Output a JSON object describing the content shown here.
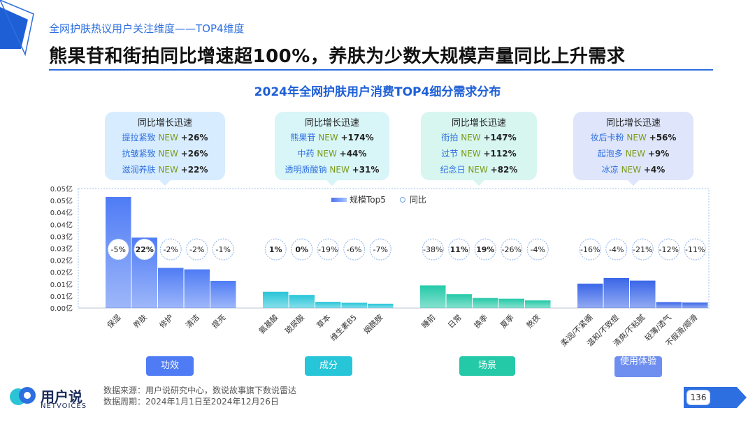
{
  "header": {
    "subtitle": "全网护肤热议用户关注维度——TOP4维度",
    "headline": "熊果苷和街拍同比增速超100%，养肤为少数大规模声量同比上升需求"
  },
  "chart_data": {
    "type": "bar",
    "title": "2024年全网护肤用户消费TOP4细分需求分布",
    "legend": [
      "规模Top5",
      "同比"
    ],
    "legend_position": "top-center",
    "y_ticks": [
      "0.05亿",
      "0.05亿",
      "0.04亿",
      "0.04亿",
      "0.03亿",
      "0.03亿",
      "0.02亿",
      "0.02亿",
      "0.01亿",
      "0.01亿",
      "0.00亿"
    ],
    "ylim": [
      0,
      0.05
    ],
    "groups": [
      {
        "name": "功效",
        "color": "#4f7cf5",
        "categories": [
          "保湿",
          "养肤",
          "修护",
          "清洁",
          "提亮"
        ],
        "values": [
          0.0465,
          0.0295,
          0.0168,
          0.0162,
          0.0114
        ],
        "yoy": [
          "-5%",
          "22%",
          "-2%",
          "-2%",
          "-1%"
        ],
        "yoy_bold": [
          false,
          true,
          false,
          false,
          false
        ]
      },
      {
        "name": "成分",
        "color": "#27c5d8",
        "categories": [
          "氨基酸",
          "玻尿酸",
          "草本",
          "维生素B5",
          "烟酰胺"
        ],
        "values": [
          0.0068,
          0.0055,
          0.0026,
          0.0022,
          0.0018
        ],
        "yoy": [
          "1%",
          "0%",
          "-19%",
          "-6%",
          "-7%"
        ],
        "yoy_bold": [
          true,
          true,
          false,
          false,
          false
        ]
      },
      {
        "name": "场景",
        "color": "#24c9a8",
        "categories": [
          "睡前",
          "日常",
          "换季",
          "夏季",
          "熬夜"
        ],
        "values": [
          0.0095,
          0.0058,
          0.0042,
          0.0039,
          0.0032
        ],
        "yoy": [
          "-38%",
          "11%",
          "19%",
          "-26%",
          "-4%"
        ],
        "yoy_bold": [
          false,
          true,
          true,
          false,
          false
        ]
      },
      {
        "name": "使用体验",
        "color": "#3a66e8",
        "categories": [
          "柔润/不紧绷",
          "温和/不致痘",
          "清爽/不粘腻",
          "轻薄/透气",
          "不假滑/顺滑"
        ],
        "values": [
          0.0102,
          0.0126,
          0.0115,
          0.0025,
          0.0023
        ],
        "yoy": [
          "-16%",
          "-4%",
          "-21%",
          "-12%",
          "-11%"
        ],
        "yoy_bold": [
          false,
          false,
          false,
          false,
          false
        ]
      }
    ]
  },
  "callouts": [
    {
      "title": "同比增长迅速",
      "items": [
        {
          "name": "提拉紧致",
          "tag": "NEW",
          "value": "+26%"
        },
        {
          "name": "抗皱紧致",
          "tag": "NEW",
          "value": "+26%"
        },
        {
          "name": "滋润养肤",
          "tag": "NEW",
          "value": "+22%"
        }
      ]
    },
    {
      "title": "同比增长迅速",
      "items": [
        {
          "name": "熊果苷",
          "tag": "NEW",
          "value": "+174%"
        },
        {
          "name": "中药",
          "tag": "NEW",
          "value": "+44%"
        },
        {
          "name": "透明质酸钠",
          "tag": "NEW",
          "value": "+31%"
        }
      ]
    },
    {
      "title": "同比增长迅速",
      "items": [
        {
          "name": "街拍",
          "tag": "NEW",
          "value": "+147%"
        },
        {
          "name": "过节",
          "tag": "NEW",
          "value": "+112%"
        },
        {
          "name": "纪念日",
          "tag": "NEW",
          "value": "+82%"
        }
      ]
    },
    {
      "title": "同比增长迅速",
      "items": [
        {
          "name": "妆后卡粉",
          "tag": "NEW",
          "value": "+56%"
        },
        {
          "name": "起泡多",
          "tag": "NEW",
          "value": "+9%"
        },
        {
          "name": "冰凉",
          "tag": "NEW",
          "value": "+4%"
        }
      ]
    }
  ],
  "footer": {
    "source": "数据来源：用户说研究中心，数说故事旗下数说雷达",
    "period": "数据周期：2024年1月1日至2024年12月26日",
    "page": "136",
    "logo": "用户说",
    "logo_sub": "NETVOICES"
  },
  "colors": {
    "accent": "#2d6fe0",
    "title_blue": "#1e5fd6"
  }
}
